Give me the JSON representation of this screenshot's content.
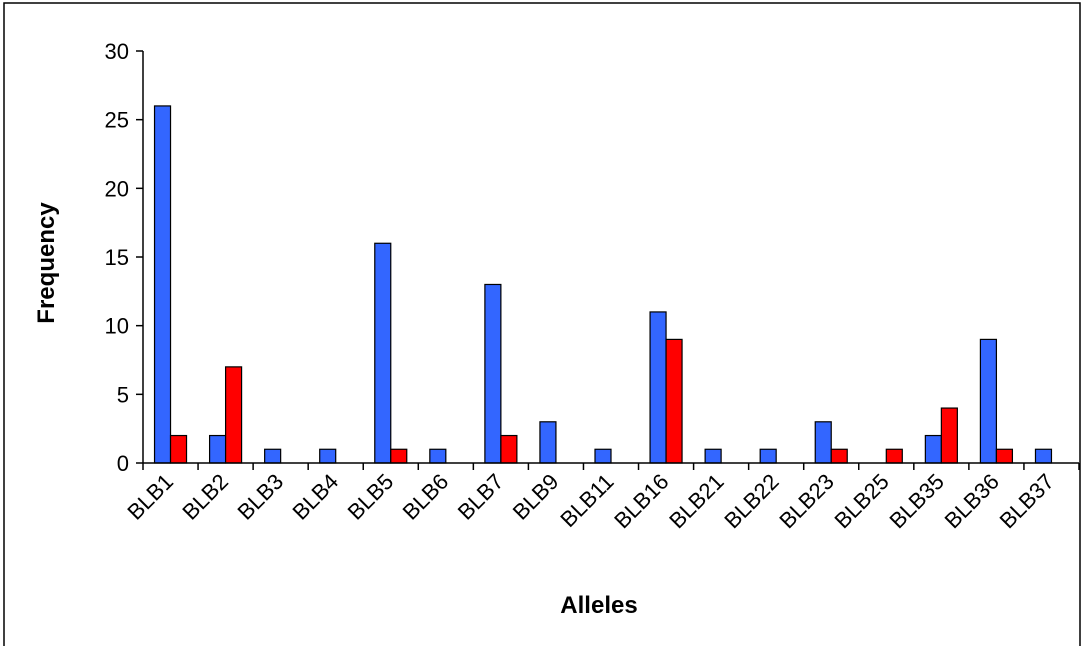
{
  "chart_data": {
    "type": "bar",
    "title": "",
    "xlabel": "Alleles",
    "ylabel": "Frequency",
    "ylim": [
      0,
      30
    ],
    "yticks": [
      0,
      5,
      10,
      15,
      20,
      25,
      30
    ],
    "grid": false,
    "legend": "none",
    "categories": [
      "BLB1",
      "BLB2",
      "BLB3",
      "BLB4",
      "BLB5",
      "BLB6",
      "BLB7",
      "BLB9",
      "BLB11",
      "BLB16",
      "BLB21",
      "BLB22",
      "BLB23",
      "BLB25",
      "BLB35",
      "BLB36",
      "BLB37"
    ],
    "series": [
      {
        "color": "#3366ff",
        "values": [
          26,
          2,
          1,
          1,
          16,
          1,
          13,
          3,
          1,
          11,
          1,
          1,
          3,
          0,
          2,
          9,
          1
        ]
      },
      {
        "color": "#ff0000",
        "values": [
          2,
          7,
          0,
          0,
          1,
          0,
          2,
          0,
          0,
          9,
          0,
          0,
          1,
          1,
          4,
          1,
          0
        ]
      }
    ]
  }
}
